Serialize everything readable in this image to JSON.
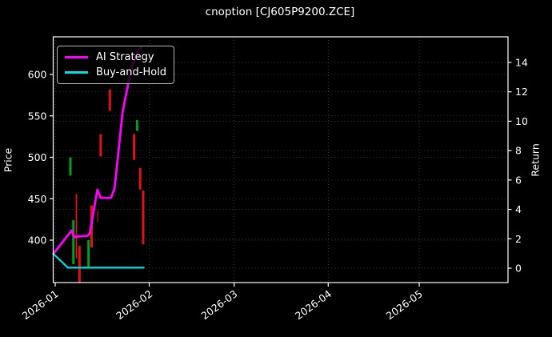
{
  "title": "cnoption [CJ605P9200.ZCE]",
  "colors": {
    "background": "#000000",
    "text": "#ffffff",
    "spine": "#ffffff",
    "grid": "#4a4a4a",
    "candle_up": "#00a028",
    "candle_down": "#e01212",
    "candle_down_faint": "#7a0f0f",
    "ai_strategy": "#ff00ff",
    "buy_and_hold": "#00e0e0"
  },
  "legend": {
    "items": [
      {
        "label": "AI Strategy",
        "color": "#ff00ff"
      },
      {
        "label": "Buy-and-Hold",
        "color": "#00e0e0"
      }
    ]
  },
  "axes": {
    "left": {
      "label": "Price",
      "ticks": [
        400,
        450,
        500,
        550,
        600
      ]
    },
    "right": {
      "label": "Return",
      "ticks": [
        0,
        2,
        4,
        6,
        8,
        10,
        12,
        14
      ]
    },
    "bottom": {
      "tick_labels": [
        "2026-01",
        "2026-02",
        "2026-03",
        "2026-04",
        "2026-05"
      ]
    }
  },
  "chart_data": {
    "type": "candlestick+line",
    "title": "cnoption [CJ605P9200.ZCE]",
    "x_axis": {
      "start_date": "2026-01-01",
      "tick_labels": [
        "2026-01",
        "2026-02",
        "2026-03",
        "2026-04",
        "2026-05"
      ],
      "tick_days": [
        0,
        31,
        59,
        90,
        120
      ]
    },
    "price_axis": {
      "label": "Price",
      "ticks": [
        400,
        450,
        500,
        550,
        600
      ],
      "ylim": [
        349,
        645
      ]
    },
    "return_axis": {
      "label": "Return",
      "ticks": [
        0,
        2,
        4,
        6,
        8,
        10,
        12,
        14
      ],
      "ylim": [
        -0.95,
        15.75
      ]
    },
    "grid": true,
    "legend_position": "upper-left",
    "candles": [
      {
        "date": "2026-01-06",
        "day": 5,
        "dir": "up",
        "high": 500,
        "low": 478
      },
      {
        "date": "2026-01-07",
        "day": 6,
        "dir": "up",
        "high": 424,
        "low": 371
      },
      {
        "date": "2026-01-08",
        "day": 7,
        "dir": "down",
        "high": 456,
        "low": 378,
        "thin": true
      },
      {
        "date": "2026-01-09",
        "day": 8,
        "dir": "down",
        "high": 393,
        "low": 349
      },
      {
        "date": "2026-01-12",
        "day": 11,
        "dir": "up",
        "high": 400,
        "low": 368
      },
      {
        "date": "2026-01-13",
        "day": 12,
        "dir": "down",
        "high": 442,
        "low": 391
      },
      {
        "date": "2026-01-15",
        "day": 14,
        "dir": "down",
        "high": 436,
        "low": 422,
        "thin": true,
        "faint": true
      },
      {
        "date": "2026-01-16",
        "day": 15,
        "dir": "down",
        "high": 528,
        "low": 501
      },
      {
        "date": "2026-01-19",
        "day": 18,
        "dir": "down",
        "high": 582,
        "low": 556
      },
      {
        "date": "2026-01-27",
        "day": 26,
        "dir": "down",
        "high": 528,
        "low": 497
      },
      {
        "date": "2026-01-28",
        "day": 27,
        "dir": "up",
        "high": 545,
        "low": 532
      },
      {
        "date": "2026-01-29",
        "day": 28,
        "dir": "down",
        "high": 487,
        "low": 461
      },
      {
        "date": "2026-01-30",
        "day": 29,
        "dir": "down",
        "high": 460,
        "low": 395
      }
    ],
    "series": [
      {
        "name": "AI Strategy",
        "axis": "return",
        "color": "#ff00ff",
        "width": 2.8,
        "points": [
          {
            "day": -0.6,
            "return": 0.98
          },
          {
            "day": 2.9,
            "return": 1.9
          },
          {
            "day": 5.4,
            "return": 2.56
          },
          {
            "day": 6.3,
            "return": 2.12
          },
          {
            "day": 7.5,
            "return": 2.15
          },
          {
            "day": 10.6,
            "return": 2.2
          },
          {
            "day": 11.4,
            "return": 2.35
          },
          {
            "day": 13.9,
            "return": 5.34
          },
          {
            "day": 15.0,
            "return": 4.79
          },
          {
            "day": 18.4,
            "return": 4.79
          },
          {
            "day": 19.6,
            "return": 5.45
          },
          {
            "day": 22.2,
            "return": 10.6
          },
          {
            "day": 24.8,
            "return": 13.3
          },
          {
            "day": 26.5,
            "return": 14.5
          },
          {
            "day": 28.3,
            "return": 15.0
          }
        ]
      },
      {
        "name": "Buy-and-Hold",
        "axis": "return",
        "color": "#00e0e0",
        "width": 2.2,
        "points": [
          {
            "day": -0.6,
            "return": 0.98
          },
          {
            "day": 4.2,
            "return": 0.03
          },
          {
            "day": 29.2,
            "return": 0.03
          }
        ]
      }
    ]
  }
}
